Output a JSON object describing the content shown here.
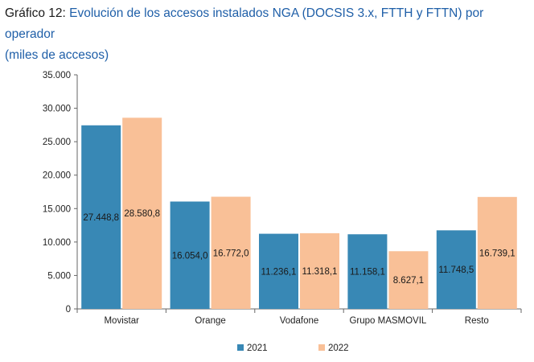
{
  "title_prefix": "Gráfico 12:",
  "title_main": "Evolución de los accesos instalados NGA (DOCSIS 3.x, FTTH y FTTN) por operador",
  "subtitle": "(miles de accesos)",
  "colors": {
    "s2021": "#3888b5",
    "s2022": "#f9c097"
  },
  "chart_data": {
    "type": "bar",
    "title": "Gráfico 12: Evolución de los accesos instalados NGA (DOCSIS 3.x, FTTH y FTTN) por operador",
    "subtitle": "(miles de accesos)",
    "categories": [
      "Movistar",
      "Orange",
      "Vodafone",
      "Grupo MASMOVIL",
      "Resto"
    ],
    "series": [
      {
        "name": "2021",
        "values": [
          27448.8,
          16054.0,
          11236.1,
          11158.1,
          11748.5
        ],
        "labels": [
          "27.448,8",
          "16.054,0",
          "11.236,1",
          "11.158,1",
          "11.748,5"
        ]
      },
      {
        "name": "2022",
        "values": [
          28580.8,
          16772.0,
          11318.1,
          8627.1,
          16739.1
        ],
        "labels": [
          "28.580,8",
          "16.772,0",
          "11.318,1",
          "8.627,1",
          "16.739,1"
        ]
      }
    ],
    "yticks": [
      0,
      5000,
      10000,
      15000,
      20000,
      25000,
      30000,
      35000
    ],
    "ytick_labels": [
      "0",
      "5.000",
      "10.000",
      "15.000",
      "20.000",
      "25.000",
      "30.000",
      "35.000"
    ],
    "ylim": [
      0,
      35000
    ],
    "grid": false,
    "legend_position": "bottom"
  }
}
